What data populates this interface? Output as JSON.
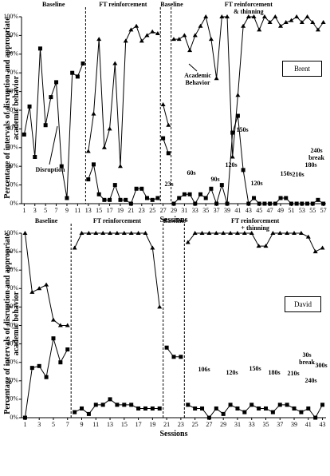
{
  "chart_data": [
    {
      "type": "line",
      "panel_label": "Brent",
      "x_label": "Sessions",
      "y_label": "Percentage of intervals of disruption and appropriate academic behavior",
      "xlim": [
        0.5,
        57.5
      ],
      "xticks": [
        1,
        3,
        5,
        7,
        9,
        11,
        13,
        15,
        17,
        19,
        21,
        23,
        25,
        27,
        29,
        31,
        33,
        35,
        37,
        39,
        41,
        43,
        45,
        47,
        49,
        51,
        53,
        55,
        57
      ],
      "ylim": [
        0,
        100
      ],
      "yticks": [
        {
          "value": 0,
          "label": "0%"
        },
        {
          "value": 10,
          "label": "10%"
        },
        {
          "value": 20,
          "label": "20%"
        },
        {
          "value": 30,
          "label": "30%"
        },
        {
          "value": 40,
          "label": "40%"
        },
        {
          "value": 50,
          "label": "50%"
        },
        {
          "value": 60,
          "label": "60%"
        },
        {
          "value": 70,
          "label": "70%"
        },
        {
          "value": 80,
          "label": "80%"
        },
        {
          "value": 90,
          "label": "90%"
        },
        {
          "value": 100,
          "label": "100%"
        }
      ],
      "phases": [
        "Baseline",
        "FT reinforcement",
        "Baseline",
        "FT reinforcement & thinning"
      ],
      "phase_changes": [
        12.5,
        26.5,
        28.5
      ],
      "x": [
        1,
        2,
        3,
        4,
        5,
        6,
        7,
        8,
        9,
        10,
        11,
        12,
        13,
        14,
        15,
        16,
        17,
        18,
        19,
        20,
        21,
        22,
        23,
        24,
        25,
        26,
        27,
        28,
        29,
        30,
        31,
        32,
        33,
        34,
        35,
        36,
        37,
        38,
        39,
        40,
        41,
        42,
        43,
        44,
        45,
        46,
        47,
        48,
        49,
        50,
        51,
        52,
        53,
        54,
        55,
        56,
        57
      ],
      "series": [
        {
          "name": "Academic Behavior",
          "color": "#000000",
          "marker": "triangle",
          "values": [
            null,
            null,
            null,
            null,
            null,
            null,
            null,
            null,
            null,
            null,
            null,
            null,
            28,
            48,
            88,
            30,
            40,
            75,
            20,
            87,
            93,
            95,
            87,
            90,
            92,
            91,
            53,
            42,
            88,
            88,
            90,
            82,
            90,
            95,
            100,
            88,
            67,
            100,
            100,
            25,
            58,
            95,
            100,
            100,
            93,
            100,
            97,
            100,
            95,
            97,
            98,
            100,
            97,
            100,
            97,
            93,
            97
          ]
        },
        {
          "name": "Disruption",
          "color": "#000000",
          "marker": "square",
          "values": [
            37,
            52,
            25,
            83,
            42,
            57,
            65,
            20,
            3,
            70,
            68,
            75,
            13,
            21,
            5,
            2,
            2,
            10,
            2,
            2,
            0,
            8,
            8,
            3,
            2,
            3,
            35,
            27,
            0,
            3,
            5,
            5,
            0,
            5,
            3,
            8,
            0,
            10,
            0,
            38,
            47,
            18,
            0,
            3,
            0,
            0,
            0,
            0,
            3,
            3,
            0,
            0,
            0,
            0,
            0,
            2,
            0
          ]
        }
      ],
      "annotations": [
        "23s",
        "60s",
        "90s",
        "120s",
        "120s",
        "150s",
        "150s",
        "180s",
        "210s",
        "240s break"
      ]
    },
    {
      "type": "line",
      "panel_label": "David",
      "x_label": "Sessions",
      "y_label": "Percentage of intervals of disruption and appropriate academic behavior",
      "xlim": [
        0.5,
        43.5
      ],
      "xticks": [
        1,
        3,
        5,
        7,
        9,
        11,
        13,
        15,
        17,
        19,
        21,
        23,
        25,
        27,
        29,
        31,
        33,
        35,
        37,
        39,
        41,
        43
      ],
      "ylim": [
        0,
        100
      ],
      "yticks": [
        {
          "value": 0,
          "label": "0%"
        },
        {
          "value": 10,
          "label": "10%"
        },
        {
          "value": 20,
          "label": "20%"
        },
        {
          "value": 30,
          "label": "30%"
        },
        {
          "value": 40,
          "label": "40%"
        },
        {
          "value": 50,
          "label": "50%"
        },
        {
          "value": 60,
          "label": "60%"
        },
        {
          "value": 70,
          "label": "70%"
        },
        {
          "value": 80,
          "label": "80%"
        },
        {
          "value": 90,
          "label": "90%"
        },
        {
          "value": 100,
          "label": "100%"
        }
      ],
      "phases": [
        "Baseline",
        "FT reinforcement",
        "Baseline",
        "FT reinforcement + thinning"
      ],
      "phase_changes": [
        7.5,
        20.5,
        23.5
      ],
      "x": [
        1,
        2,
        3,
        4,
        5,
        6,
        7,
        8,
        9,
        10,
        11,
        12,
        13,
        14,
        15,
        16,
        17,
        18,
        19,
        20,
        21,
        22,
        23,
        24,
        25,
        26,
        27,
        28,
        29,
        30,
        31,
        32,
        33,
        34,
        35,
        36,
        37,
        38,
        39,
        40,
        41,
        42,
        43
      ],
      "series": [
        {
          "color": "#000000",
          "marker": "triangle",
          "values": [
            100,
            68,
            70,
            72,
            53,
            50,
            50,
            92,
            100,
            100,
            100,
            100,
            100,
            100,
            100,
            100,
            100,
            100,
            92,
            60,
            null,
            null,
            null,
            95,
            100,
            100,
            100,
            100,
            100,
            100,
            100,
            100,
            100,
            93,
            93,
            100,
            100,
            100,
            100,
            100,
            98,
            90,
            92
          ]
        },
        {
          "color": "#000000",
          "marker": "square",
          "values": [
            0,
            27,
            28,
            22,
            43,
            30,
            37,
            3,
            5,
            2,
            7,
            7,
            10,
            7,
            7,
            7,
            5,
            5,
            5,
            5,
            38,
            33,
            33,
            7,
            5,
            5,
            0,
            5,
            2,
            7,
            5,
            3,
            7,
            5,
            5,
            3,
            7,
            7,
            5,
            3,
            5,
            0,
            7
          ]
        }
      ],
      "annotations": [
        "106s",
        "120s",
        "150s",
        "180s",
        "210s",
        "240s",
        "30s break",
        "300s"
      ]
    }
  ]
}
